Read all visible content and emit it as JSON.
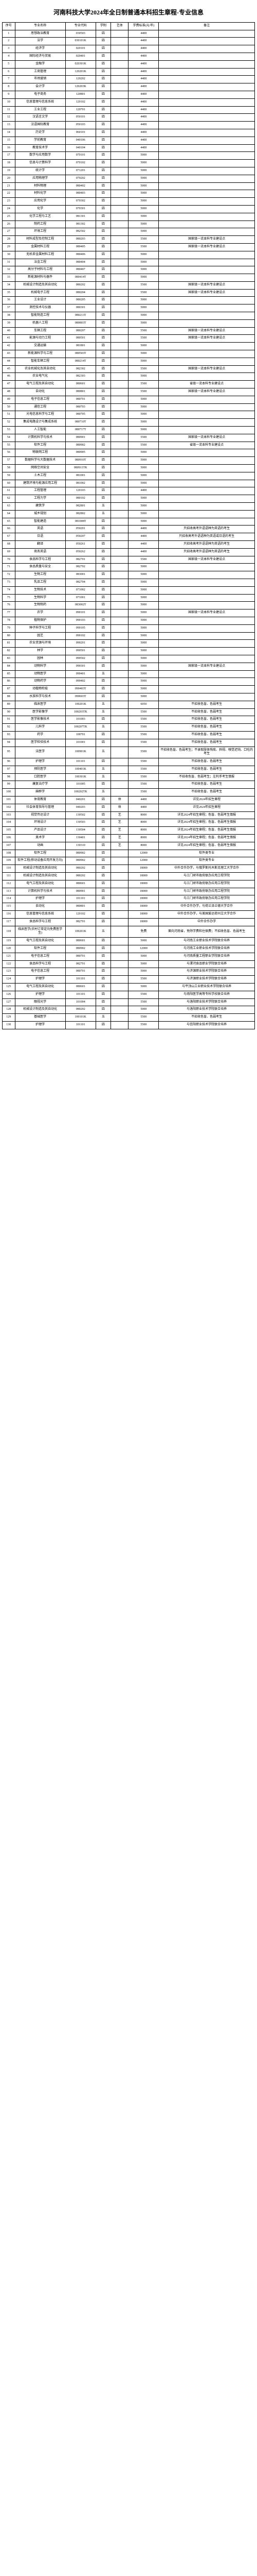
{
  "title": "河南科技大学2024年全日制普通本科招生章程-专业信息",
  "columns": [
    "序号",
    "专业名称",
    "专业代码",
    "学制",
    "艺体",
    "学费标准(元/年)",
    "备注"
  ],
  "col_classes": [
    "c-idx",
    "c-name",
    "c-code",
    "c-years",
    "c-cat",
    "c-fee",
    "c-note"
  ],
  "rows": [
    [
      "1",
      "思想政治教育",
      "030503",
      "四",
      "",
      "4400",
      ""
    ],
    [
      "2",
      "法学",
      "030101K",
      "四",
      "",
      "4400",
      ""
    ],
    [
      "3",
      "经济学",
      "020101",
      "四",
      "",
      "4400",
      ""
    ],
    [
      "4",
      "国际经济与贸易",
      "020401",
      "四",
      "",
      "4400",
      ""
    ],
    [
      "5",
      "金融学",
      "020301K",
      "四",
      "",
      "4400",
      ""
    ],
    [
      "6",
      "工商管理",
      "120201K",
      "四",
      "",
      "4400",
      ""
    ],
    [
      "7",
      "市场营销",
      "120202",
      "四",
      "",
      "4400",
      ""
    ],
    [
      "8",
      "会计学",
      "120203K",
      "四",
      "",
      "4400",
      ""
    ],
    [
      "9",
      "电子商务",
      "120801",
      "四",
      "",
      "4400",
      ""
    ],
    [
      "10",
      "信息管理与信息系统",
      "120102",
      "四",
      "",
      "4400",
      ""
    ],
    [
      "11",
      "工业工程",
      "120701",
      "四",
      "",
      "4400",
      ""
    ],
    [
      "12",
      "汉语言文学",
      "050101",
      "四",
      "",
      "4400",
      ""
    ],
    [
      "13",
      "汉语国际教育",
      "050103",
      "四",
      "",
      "4400",
      ""
    ],
    [
      "14",
      "历史学",
      "060101",
      "四",
      "",
      "4400",
      ""
    ],
    [
      "15",
      "学前教育",
      "040106",
      "四",
      "",
      "4400",
      ""
    ],
    [
      "16",
      "教育技术学",
      "040104",
      "四",
      "",
      "4400",
      ""
    ],
    [
      "17",
      "数学与应用数学",
      "070101",
      "四",
      "",
      "5000",
      ""
    ],
    [
      "18",
      "信息与计算科学",
      "070102",
      "四",
      "",
      "5000",
      ""
    ],
    [
      "19",
      "统计学",
      "071201",
      "四",
      "",
      "5000",
      ""
    ],
    [
      "20",
      "应用物理学",
      "070202",
      "四",
      "",
      "5000",
      ""
    ],
    [
      "21",
      "材料物理",
      "080402",
      "四",
      "",
      "5000",
      ""
    ],
    [
      "22",
      "材料化学",
      "080403",
      "四",
      "",
      "5000",
      ""
    ],
    [
      "23",
      "应用化学",
      "070302",
      "四",
      "",
      "5000",
      ""
    ],
    [
      "24",
      "化学",
      "070301",
      "四",
      "",
      "5000",
      ""
    ],
    [
      "25",
      "化学工程与工艺",
      "081301",
      "四",
      "",
      "5000",
      ""
    ],
    [
      "26",
      "制药工程",
      "081302",
      "四",
      "",
      "5000",
      ""
    ],
    [
      "27",
      "环境工程",
      "082502",
      "四",
      "",
      "5000",
      ""
    ],
    [
      "28",
      "材料成型及控制工程",
      "080203",
      "四",
      "",
      "5500",
      "国家级一流本科专业建设点"
    ],
    [
      "29",
      "金属材料工程",
      "080405",
      "四",
      "",
      "5500",
      "国家级一流本科专业建设点"
    ],
    [
      "30",
      "无机非金属材料工程",
      "080406",
      "四",
      "",
      "5000",
      ""
    ],
    [
      "31",
      "冶金工程",
      "080404",
      "四",
      "",
      "5000",
      ""
    ],
    [
      "32",
      "高分子材料与工程",
      "080407",
      "四",
      "",
      "5000",
      ""
    ],
    [
      "33",
      "新能源材料与器件",
      "080414T",
      "四",
      "",
      "5000",
      ""
    ],
    [
      "34",
      "机械设计制造及其自动化",
      "080202",
      "四",
      "",
      "5500",
      "国家级一流本科专业建设点"
    ],
    [
      "35",
      "机械电子工程",
      "080204",
      "四",
      "",
      "5500",
      "国家级一流本科专业建设点"
    ],
    [
      "36",
      "工业设计",
      "080205",
      "四",
      "",
      "5000",
      ""
    ],
    [
      "37",
      "测控技术与仪器",
      "080301",
      "四",
      "",
      "5000",
      ""
    ],
    [
      "38",
      "智能制造工程",
      "080213T",
      "四",
      "",
      "5000",
      ""
    ],
    [
      "39",
      "机器人工程",
      "080803T",
      "四",
      "",
      "5000",
      ""
    ],
    [
      "40",
      "车辆工程",
      "080207",
      "四",
      "",
      "5500",
      "国家级一流本科专业建设点"
    ],
    [
      "41",
      "能源与动力工程",
      "080501",
      "四",
      "",
      "5500",
      "国家级一流本科专业建设点"
    ],
    [
      "42",
      "交通运输",
      "081801",
      "四",
      "",
      "5000",
      ""
    ],
    [
      "43",
      "新能源科学与工程",
      "080503T",
      "四",
      "",
      "5000",
      ""
    ],
    [
      "44",
      "智能车辆工程",
      "080214T",
      "四",
      "",
      "5000",
      ""
    ],
    [
      "45",
      "农业机械化及其自动化",
      "082302",
      "四",
      "",
      "5500",
      "国家级一流本科专业建设点"
    ],
    [
      "46",
      "农业电气化",
      "082303",
      "四",
      "",
      "5000",
      ""
    ],
    [
      "47",
      "电气工程及其自动化",
      "080601",
      "四",
      "",
      "5500",
      "省级一流本科专业建设点"
    ],
    [
      "48",
      "自动化",
      "080801",
      "四",
      "",
      "5500",
      "国家级一流本科专业建设点"
    ],
    [
      "49",
      "电子信息工程",
      "080701",
      "四",
      "",
      "5000",
      ""
    ],
    [
      "50",
      "通信工程",
      "080703",
      "四",
      "",
      "5000",
      ""
    ],
    [
      "51",
      "光电信息科学与工程",
      "080705",
      "四",
      "",
      "5000",
      ""
    ],
    [
      "52",
      "集成电路设计与集成系统",
      "080710T",
      "四",
      "",
      "5000",
      ""
    ],
    [
      "53",
      "人工智能",
      "080717T",
      "四",
      "",
      "5000",
      ""
    ],
    [
      "54",
      "计算机科学与技术",
      "080901",
      "四",
      "",
      "5500",
      "国家级一流本科专业建设点"
    ],
    [
      "55",
      "软件工程",
      "080902",
      "四",
      "",
      "5500",
      "省级一流本科专业建设点"
    ],
    [
      "56",
      "物联网工程",
      "080905",
      "四",
      "",
      "5000",
      ""
    ],
    [
      "57",
      "数据科学与大数据技术",
      "080910T",
      "四",
      "",
      "5000",
      ""
    ],
    [
      "58",
      "网络空间安全",
      "080911TK",
      "四",
      "",
      "5000",
      ""
    ],
    [
      "59",
      "土木工程",
      "081001",
      "四",
      "",
      "5000",
      ""
    ],
    [
      "60",
      "建筑环境与能源应用工程",
      "081002",
      "四",
      "",
      "5000",
      ""
    ],
    [
      "61",
      "工程管理",
      "120103",
      "四",
      "",
      "4400",
      ""
    ],
    [
      "62",
      "工程力学",
      "080102",
      "四",
      "",
      "5000",
      ""
    ],
    [
      "63",
      "建筑学",
      "082801",
      "五",
      "",
      "5000",
      ""
    ],
    [
      "64",
      "城乡规划",
      "082802",
      "五",
      "",
      "5000",
      ""
    ],
    [
      "65",
      "智能建造",
      "081008T",
      "四",
      "",
      "5000",
      ""
    ],
    [
      "66",
      "英语",
      "050201",
      "四",
      "",
      "4400",
      "只招收高考外语语种为英语的考生"
    ],
    [
      "67",
      "日语",
      "050207",
      "四",
      "",
      "4400",
      "只招收高考外语语种为英语或日语的考生"
    ],
    [
      "68",
      "翻译",
      "050261",
      "四",
      "",
      "4400",
      "只招收高考外语语种为英语的考生"
    ],
    [
      "69",
      "商务英语",
      "050262",
      "四",
      "",
      "4400",
      "只招收高考外语语种为英语的考生"
    ],
    [
      "70",
      "食品科学与工程",
      "082701",
      "四",
      "",
      "5500",
      "国家级一流本科专业建设点"
    ],
    [
      "71",
      "食品质量与安全",
      "082702",
      "四",
      "",
      "5000",
      ""
    ],
    [
      "72",
      "生物工程",
      "083001",
      "四",
      "",
      "5000",
      ""
    ],
    [
      "73",
      "乳品工程",
      "082704",
      "四",
      "",
      "5000",
      ""
    ],
    [
      "74",
      "生物技术",
      "071002",
      "四",
      "",
      "5000",
      ""
    ],
    [
      "75",
      "生物科学",
      "071001",
      "四",
      "",
      "5000",
      ""
    ],
    [
      "76",
      "生物制药",
      "083002T",
      "四",
      "",
      "5000",
      ""
    ],
    [
      "77",
      "农学",
      "090101",
      "四",
      "",
      "5000",
      "国家级一流本科专业建设点"
    ],
    [
      "78",
      "植物保护",
      "090103",
      "四",
      "",
      "5000",
      ""
    ],
    [
      "79",
      "种子科学与工程",
      "090105",
      "四",
      "",
      "5000",
      ""
    ],
    [
      "80",
      "园艺",
      "090102",
      "四",
      "",
      "5000",
      ""
    ],
    [
      "81",
      "农业资源与环境",
      "090201",
      "四",
      "",
      "5000",
      ""
    ],
    [
      "82",
      "林学",
      "090501",
      "四",
      "",
      "5000",
      ""
    ],
    [
      "83",
      "园林",
      "090502",
      "四",
      "",
      "5000",
      ""
    ],
    [
      "84",
      "动物科学",
      "090301",
      "四",
      "",
      "5000",
      "国家级一流本科专业建设点"
    ],
    [
      "85",
      "动物医学",
      "090401",
      "五",
      "",
      "5000",
      ""
    ],
    [
      "86",
      "动物药学",
      "090402",
      "四",
      "",
      "5000",
      ""
    ],
    [
      "87",
      "动植物检疫",
      "090403T",
      "四",
      "",
      "5000",
      ""
    ],
    [
      "88",
      "水族科学与技术",
      "090603T",
      "四",
      "",
      "5000",
      ""
    ],
    [
      "89",
      "临床医学",
      "100201K",
      "五",
      "",
      "6050",
      "不招收色盲、色弱考生"
    ],
    [
      "90",
      "医学影像学",
      "100203TK",
      "五",
      "",
      "5500",
      "不招收色盲、色弱考生"
    ],
    [
      "91",
      "医学影像技术",
      "101003",
      "四",
      "",
      "5500",
      "不招收色盲、色弱考生"
    ],
    [
      "92",
      "儿科学",
      "100207TK",
      "五",
      "",
      "5500",
      "不招收色盲、色弱考生"
    ],
    [
      "93",
      "药学",
      "100701",
      "四",
      "",
      "5500",
      "不招收色盲、色弱考生"
    ],
    [
      "94",
      "医学检验技术",
      "101001",
      "四",
      "",
      "5500",
      "不招收色盲、色弱考生"
    ],
    [
      "95",
      "法医学",
      "100901K",
      "五",
      "",
      "5500",
      "不招收色盲、色弱考生；不录取肢体残疾、斜视、嗅觉迟钝、口吃的考生"
    ],
    [
      "96",
      "护理学",
      "101101",
      "四",
      "",
      "5500",
      "不招收色盲、色弱考生"
    ],
    [
      "97",
      "预防医学",
      "100401K",
      "五",
      "",
      "5500",
      "不招收色盲、色弱考生"
    ],
    [
      "98",
      "口腔医学",
      "100301K",
      "五",
      "",
      "5500",
      "不招收色盲、色弱考生；左利手考生慎报"
    ],
    [
      "99",
      "康复治疗学",
      "101005",
      "四",
      "",
      "5500",
      "不招收色盲、色弱考生"
    ],
    [
      "100",
      "麻醉学",
      "100202TK",
      "五",
      "",
      "5500",
      "不招收色盲、色弱考生"
    ],
    [
      "101",
      "体育教育",
      "040201",
      "四",
      "体",
      "4400",
      "详见2024年招生章程"
    ],
    [
      "102",
      "社会体育指导与管理",
      "040203",
      "四",
      "体",
      "4400",
      "详见2024年招生章程"
    ],
    [
      "103",
      "视觉传达设计",
      "130502",
      "四",
      "艺",
      "8000",
      "详见2024年招生章程；色盲、色弱考生慎报"
    ],
    [
      "104",
      "环境设计",
      "130503",
      "四",
      "艺",
      "8000",
      "详见2024年招生章程；色盲、色弱考生慎报"
    ],
    [
      "105",
      "产品设计",
      "130504",
      "四",
      "艺",
      "8000",
      "详见2024年招生章程；色盲、色弱考生慎报"
    ],
    [
      "106",
      "美术学",
      "130401",
      "四",
      "艺",
      "8000",
      "详见2024年招生章程；色盲、色弱考生慎报"
    ],
    [
      "107",
      "动画",
      "130310",
      "四",
      "艺",
      "8000",
      "详见2024年招生章程；色盲、色弱考生慎报"
    ],
    [
      "108",
      "软件工程",
      "080902",
      "四",
      "",
      "12000",
      "软件类专业"
    ],
    [
      "109",
      "软件工程(移动设备应用开发方向)",
      "080902",
      "四",
      "",
      "12000",
      "软件类专业"
    ],
    [
      "110",
      "机械设计制造及其自动化",
      "080202",
      "四",
      "",
      "18000",
      "中外合作办学，与俄罗斯托木斯克理工大学合作"
    ],
    [
      "111",
      "机械设计制造及其自动化",
      "080202",
      "四",
      "",
      "18000",
      "与三门峡市政府联办应用工程学院"
    ],
    [
      "112",
      "电气工程及其自动化",
      "080601",
      "四",
      "",
      "18000",
      "与三门峡市政府联办应用工程学院"
    ],
    [
      "113",
      "计算机科学与技术",
      "080901",
      "四",
      "",
      "18000",
      "与三门峡市政府联办应用工程学院"
    ],
    [
      "114",
      "护理学",
      "101101",
      "四",
      "",
      "18000",
      "与三门峡市政府联办应用工程学院"
    ],
    [
      "115",
      "自动化",
      "080801",
      "四",
      "",
      "18000",
      "中外合作办学，与荷兰泽兰德大学合作"
    ],
    [
      "116",
      "信息管理与信息系统",
      "120102",
      "四",
      "",
      "18000",
      "中外合作办学，与美国爱达荷州立大学合作"
    ],
    [
      "117",
      "食品科学与工程",
      "082701",
      "四",
      "",
      "18000",
      "中外合作办学"
    ],
    [
      "118",
      "临床医学(农村订单定向免费医学生)",
      "100201K",
      "五",
      "",
      "免费",
      "面向河南省，免除学费和住宿费；不招收色盲、色弱考生"
    ],
    [
      "119",
      "电气工程及其自动化",
      "080601",
      "四",
      "",
      "5000",
      "与河南工业职业技术学院联合培养"
    ],
    [
      "120",
      "软件工程",
      "080902",
      "四",
      "",
      "12000",
      "与河南工业职业技术学院联合培养"
    ],
    [
      "121",
      "电子信息工程",
      "080701",
      "四",
      "",
      "5000",
      "与河南质量工程职业学院联合培养"
    ],
    [
      "122",
      "食品科学与工程",
      "082701",
      "四",
      "",
      "5000",
      "与漯河食品职业学院联合培养"
    ],
    [
      "123",
      "电子信息工程",
      "080701",
      "四",
      "",
      "5000",
      "与济源职业技术学院联合培养"
    ],
    [
      "124",
      "护理学",
      "101101",
      "四",
      "",
      "5500",
      "与济源职业技术学院联合培养"
    ],
    [
      "125",
      "电气工程及其自动化",
      "080601",
      "四",
      "",
      "5000",
      "与平顶山工业职业技术学院联合培养"
    ],
    [
      "126",
      "护理学",
      "101101",
      "四",
      "",
      "5500",
      "与南阳医学高等专科学校联合培养"
    ],
    [
      "127",
      "眼视光学",
      "101004",
      "四",
      "",
      "5500",
      "与洛阳职业技术学院联合培养"
    ],
    [
      "128",
      "机械设计制造及其自动化",
      "080202",
      "四",
      "",
      "5000",
      "与洛阳职业技术学院联合培养"
    ],
    [
      "129",
      "基础医学",
      "100101K",
      "五",
      "",
      "5500",
      "不招收色盲、色弱考生"
    ],
    [
      "130",
      "护理学",
      "101101",
      "四",
      "",
      "5500",
      "与信阳职业技术学院联合培养"
    ]
  ]
}
